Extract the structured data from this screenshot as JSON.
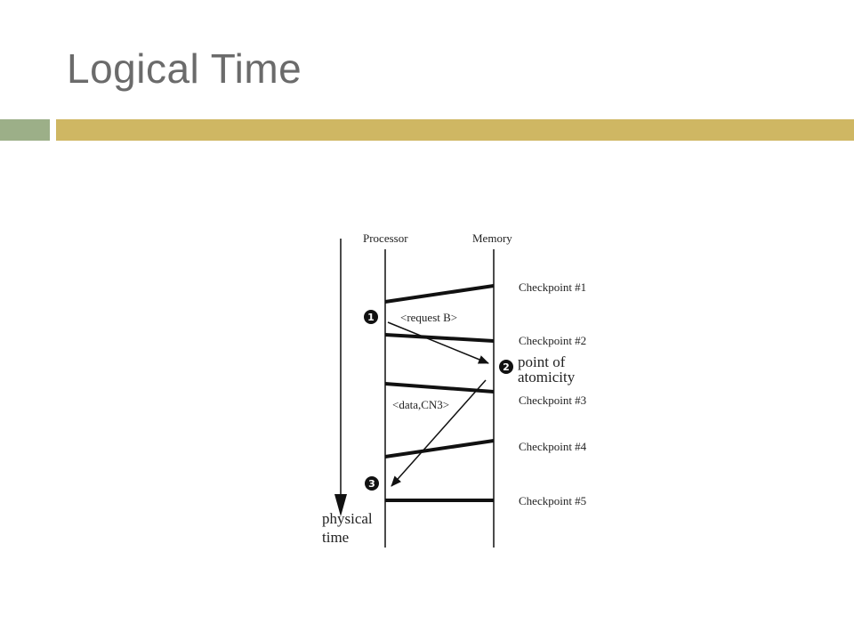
{
  "slide": {
    "title": "Logical Time",
    "bar_colors": {
      "left": "#9caf88",
      "right": "#cfb763"
    }
  },
  "diagram": {
    "processor_label": "Processor",
    "memory_label": "Memory",
    "axis_label_line1": "physical",
    "axis_label_line2": "time",
    "checkpoints": [
      "Checkpoint #1",
      "Checkpoint #2",
      "Checkpoint #3",
      "Checkpoint #4",
      "Checkpoint #5"
    ],
    "messages": {
      "request": "<request B>",
      "data": "<data,CN3>"
    },
    "markers": {
      "one": "1",
      "two": "2",
      "three": "3"
    },
    "point_label_line1": "point of",
    "point_label_line2": "atomicity"
  }
}
